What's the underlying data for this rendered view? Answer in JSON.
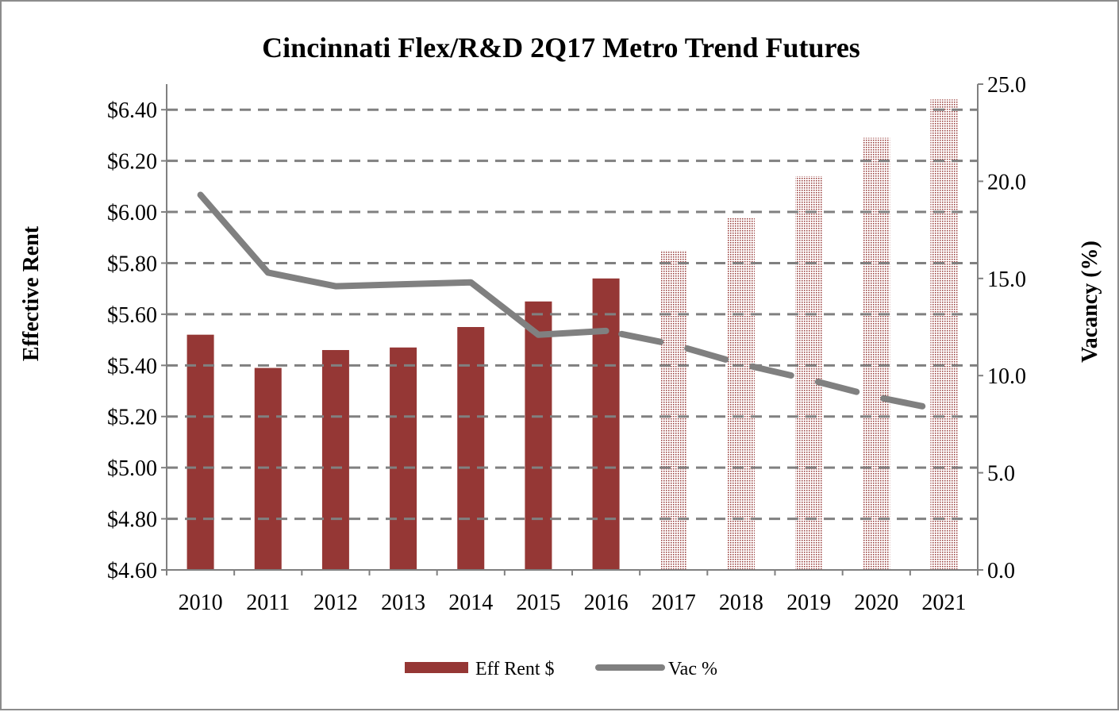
{
  "chart_data": {
    "type": "bar+line",
    "title": "Cincinnati Flex/R&D 2Q17 Metro Trend Futures",
    "ylabel": "Effective Rent",
    "y2label": "Vacancy (%)",
    "categories": [
      "2010",
      "2011",
      "2012",
      "2013",
      "2014",
      "2015",
      "2016",
      "2017",
      "2018",
      "2019",
      "2020",
      "2021"
    ],
    "ylim": [
      4.6,
      6.5
    ],
    "yticks": [
      "$4.60",
      "$4.80",
      "$5.00",
      "$5.20",
      "$5.40",
      "$5.60",
      "$5.80",
      "$6.00",
      "$6.20",
      "$6.40"
    ],
    "y2lim": [
      0,
      25
    ],
    "y2ticks": [
      "0.0",
      "5.0",
      "10.0",
      "15.0",
      "20.0",
      "25.0"
    ],
    "grid": true,
    "legend_position": "bottom",
    "forecast_from": "2017",
    "series": [
      {
        "name": "Eff Rent $",
        "type": "bar",
        "axis": "left",
        "color": "#953735",
        "values": [
          5.52,
          5.39,
          5.46,
          5.47,
          5.55,
          5.65,
          5.74,
          5.85,
          5.98,
          6.14,
          6.29,
          6.44
        ]
      },
      {
        "name": "Vac %",
        "type": "line",
        "axis": "right",
        "color": "#808080",
        "values": [
          19.3,
          15.3,
          14.6,
          14.7,
          14.8,
          12.1,
          12.3,
          11.6,
          10.6,
          9.8,
          8.9,
          8.2
        ]
      }
    ]
  }
}
